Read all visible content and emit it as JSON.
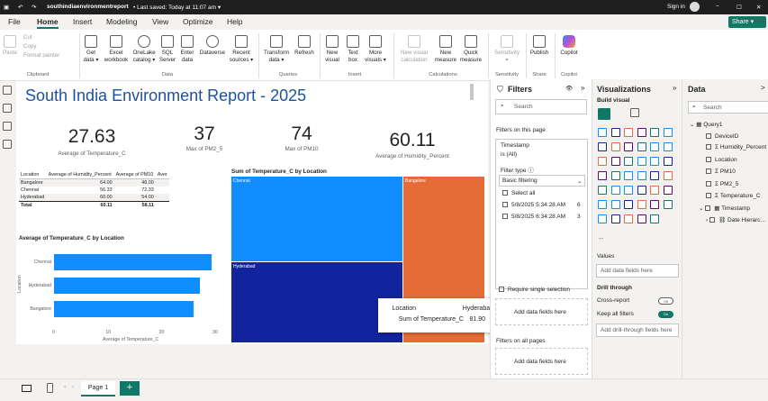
{
  "titlebar": {
    "file": "southindiaenvironmentreport",
    "saved": "• Last saved: Today at 11:07 am ▾",
    "signin": "Sign in",
    "win_min": "−",
    "win_max": "☐",
    "win_close": "✕"
  },
  "menu": {
    "file": "File",
    "home": "Home",
    "insert": "Insert",
    "modeling": "Modeling",
    "view": "View",
    "optimize": "Optimize",
    "help": "Help",
    "share": "Share ▾"
  },
  "ribbon": {
    "paste": "Paste",
    "cut": "Cut",
    "copy": "Copy",
    "format_painter": "Format painter",
    "clipboard": "Clipboard",
    "get_data": "Get\ndata ▾",
    "excel": "Excel\nworkbook",
    "onelake": "OneLake\ncatalog ▾",
    "sql": "SQL\nServer",
    "enter_data": "Enter\ndata",
    "dataverse": "Dataverse",
    "recent": "Recent\nsources ▾",
    "data_group": "Data",
    "transform": "Transform\ndata ▾",
    "refresh": "Refresh",
    "queries_group": "Queries",
    "new_visual": "New\nvisual",
    "text_box": "Text\nbox",
    "more_visuals": "More\nvisuals ▾",
    "insert_group": "Insert",
    "new_visual_calc": "New visual\ncalculation",
    "new_measure": "New\nmeasure",
    "quick_measure": "Quick\nmeasure",
    "calc_group": "Calculations",
    "sensitivity": "Sensitivity\n▾",
    "sens_group": "Sensitivity",
    "publish": "Publish",
    "share_group": "Share",
    "copilot": "Copilot",
    "copilot_group": "Copilot"
  },
  "report": {
    "title": "South India Environment Report - 2025"
  },
  "cards": [
    {
      "value": "27.63",
      "label": "Average of Temperature_C"
    },
    {
      "value": "37",
      "label": "Max of PM2_5"
    },
    {
      "value": "74",
      "label": "Max of PM10"
    },
    {
      "value": "60.11",
      "label": "Average of Humidity_Percent"
    }
  ],
  "table": {
    "headers": [
      "Location",
      "Average of Humidity_Percent",
      "Average of PM10",
      "Aver"
    ],
    "rows": [
      [
        "Bangalore",
        "64.00",
        "48.00",
        ""
      ],
      [
        "Chennai",
        "56.33",
        "72.33",
        ""
      ],
      [
        "Hyderabad",
        "60.00",
        "54.00",
        ""
      ]
    ],
    "total": [
      "Total",
      "60.11",
      "58.11",
      ""
    ]
  },
  "treemap": {
    "title": "Sum of Temperature_C by Location",
    "labels": [
      "Chennai",
      "Bangalore",
      "Hyderabad"
    ]
  },
  "tooltip": {
    "k1": "Location",
    "v1": "Hyderabad",
    "k2": "Sum of Temperature_C",
    "v2": "81.90"
  },
  "chart_data": [
    {
      "type": "bar",
      "title": "Average of Temperature_C by Location",
      "categories": [
        "Chennai",
        "Hyderabad",
        "Bangalore"
      ],
      "values": [
        29.5,
        27.3,
        26.1
      ],
      "xlabel": "Average of Temperature_C",
      "ylabel": "Location",
      "xlim": [
        0,
        30
      ],
      "ticks": [
        "0",
        "10",
        "20",
        "30"
      ]
    }
  ],
  "filters": {
    "title": "Filters",
    "search": "Search",
    "on_page": "Filters on this page",
    "field": "Timestamp",
    "field_state": "is (All)",
    "filter_type": "Filter type ⓘ",
    "filter_type_value": "Basic filtering",
    "select_all": "Select all",
    "opt1": "5/8/2025 5:34:28 AM",
    "opt1_count": "6",
    "opt2": "5/8/2025 6:34:28 AM",
    "opt2_count": "3",
    "require_single": "Require single selection",
    "add_fields": "Add data fields here",
    "on_all": "Filters on all pages",
    "add_fields2": "Add data fields here"
  },
  "viz": {
    "title": "Visualizations",
    "build": "Build visual",
    "more": "...",
    "values": "Values",
    "add_values": "Add data fields here",
    "drill": "Drill through",
    "cross": "Cross-report",
    "cross_state": "Off",
    "keep": "Keep all filters",
    "keep_state": "On",
    "add_drill": "Add drill-through fields here"
  },
  "data": {
    "title": "Data",
    "search": "Search",
    "table": "Query1",
    "fields": [
      "DeviceID",
      "Σ Humidity_Percent",
      "Location",
      "Σ PM10",
      "Σ PM2_5",
      "Σ Temperature_C"
    ],
    "ts": "Timestamp",
    "date_hier": "Date Hierarc..."
  },
  "status": {
    "page": "Page 1",
    "add": "+"
  },
  "colors": {
    "accent": "#117865",
    "title": "#1e52a1",
    "bar": "#118dff",
    "treemap": [
      "#118dff",
      "#e66c37",
      "#12239e"
    ]
  }
}
